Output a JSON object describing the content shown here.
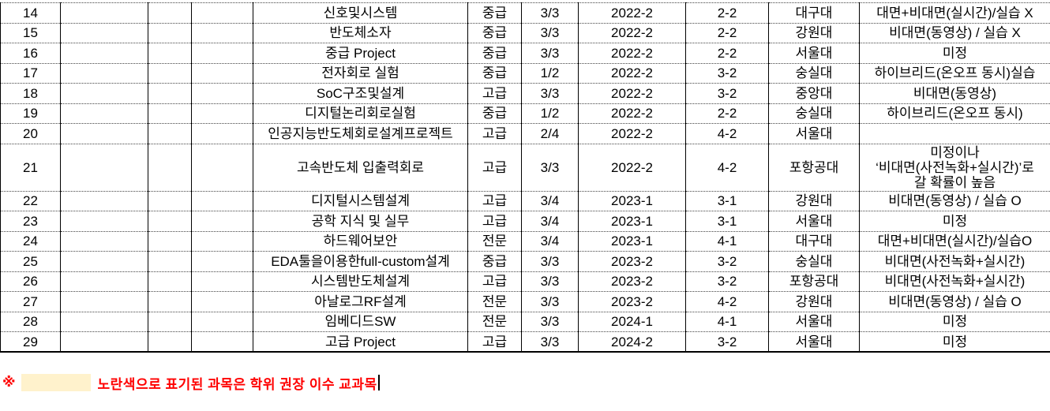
{
  "table": {
    "column_order": [
      "no",
      "b",
      "c",
      "d",
      "course",
      "level",
      "credits",
      "semester",
      "grade_term",
      "university",
      "method"
    ],
    "rows": [
      {
        "no": "14",
        "b": "",
        "c": "",
        "d": "",
        "course": "신호및시스템",
        "level": "중급",
        "credits": "3/3",
        "semester": "2022-2",
        "grade_term": "2-2",
        "university": "대구대",
        "method": "대면+비대면(실시간)/실습 X"
      },
      {
        "no": "15",
        "b": "",
        "c": "",
        "d": "",
        "course": "반도체소자",
        "level": "중급",
        "credits": "3/3",
        "semester": "2022-2",
        "grade_term": "2-2",
        "university": "강원대",
        "method": "비대면(동영상) / 실습 X"
      },
      {
        "no": "16",
        "b": "",
        "c": "",
        "d": "",
        "course": "중급 Project",
        "level": "중급",
        "credits": "3/3",
        "semester": "2022-2",
        "grade_term": "2-2",
        "university": "서울대",
        "method": "미정"
      },
      {
        "no": "17",
        "b": "",
        "c": "",
        "d": "",
        "course": "전자회로 실험",
        "level": "중급",
        "credits": "1/2",
        "semester": "2022-2",
        "grade_term": "3-2",
        "university": "숭실대",
        "method": "하이브리드(온오프 동시)실습"
      },
      {
        "no": "18",
        "b": "",
        "c": "",
        "d": "",
        "course": "SoC구조및설계",
        "level": "고급",
        "credits": "3/3",
        "semester": "2022-2",
        "grade_term": "3-2",
        "university": "중앙대",
        "method": "비대면(동영상)"
      },
      {
        "no": "19",
        "b": "",
        "c": "",
        "d": "",
        "course": "디지털논리회로실험",
        "level": "중급",
        "credits": "1/2",
        "semester": "2022-2",
        "grade_term": "2-2",
        "university": "숭실대",
        "method": "하이브리드(온오프 동시)"
      },
      {
        "no": "20",
        "b": "",
        "c": "",
        "d": "",
        "course": "인공지능반도체회로설계프로젝트",
        "level": "고급",
        "credits": "2/4",
        "semester": "2022-2",
        "grade_term": "4-2",
        "university": "서울대",
        "method": ""
      },
      {
        "no": "21",
        "b": "",
        "c": "",
        "d": "",
        "course": "고속반도체 입출력회로",
        "level": "고급",
        "credits": "3/3",
        "semester": "2022-2",
        "grade_term": "4-2",
        "university": "포항공대",
        "method": "미정이나\n‘비대면(사전녹화+실시간)’로\n갈 확률이 높음"
      },
      {
        "no": "22",
        "b": "",
        "c": "",
        "d": "",
        "course": "디지털시스템설계",
        "level": "고급",
        "credits": "3/4",
        "semester": "2023-1",
        "grade_term": "3-1",
        "university": "강원대",
        "method": "비대면(동영상) / 실습 O"
      },
      {
        "no": "23",
        "b": "",
        "c": "",
        "d": "",
        "course": "공학 지식 및 실무",
        "level": "고급",
        "credits": "3/4",
        "semester": "2023-1",
        "grade_term": "3-1",
        "university": "서울대",
        "method": "미정"
      },
      {
        "no": "24",
        "b": "",
        "c": "",
        "d": "",
        "course": "하드웨어보안",
        "level": "전문",
        "credits": "3/4",
        "semester": "2023-1",
        "grade_term": "4-1",
        "university": "대구대",
        "method": "대면+비대면(실시간)/실습O"
      },
      {
        "no": "25",
        "b": "",
        "c": "",
        "d": "",
        "course": "EDA툴을이용한full-custom설계",
        "level": "중급",
        "credits": "3/3",
        "semester": "2023-2",
        "grade_term": "3-2",
        "university": "숭실대",
        "method": "비대면(사전녹화+실시간)"
      },
      {
        "no": "26",
        "b": "",
        "c": "",
        "d": "",
        "course": "시스템반도체설계",
        "level": "고급",
        "credits": "3/3",
        "semester": "2023-2",
        "grade_term": "3-2",
        "university": "포항공대",
        "method": "비대면(사전녹화+실시간)"
      },
      {
        "no": "27",
        "b": "",
        "c": "",
        "d": "",
        "course": "아날로그RF설계",
        "level": "전문",
        "credits": "3/3",
        "semester": "2023-2",
        "grade_term": "4-2",
        "university": "강원대",
        "method": "비대면(동영상) / 실습 O"
      },
      {
        "no": "28",
        "b": "",
        "c": "",
        "d": "",
        "course": "임베디드SW",
        "level": "전문",
        "credits": "3/3",
        "semester": "2024-1",
        "grade_term": "4-1",
        "university": "서울대",
        "method": "미정"
      },
      {
        "no": "29",
        "b": "",
        "c": "",
        "d": "",
        "course": "고급 Project",
        "level": "고급",
        "credits": "3/3",
        "semester": "2024-2",
        "grade_term": "3-2",
        "university": "서울대",
        "method": "미정"
      }
    ]
  },
  "note": {
    "marker": "※",
    "text": "노란색으로 표기된 과목은 학위 권장 이수 교과목",
    "text_color": "#FF0000",
    "highlight_color": "#FFF2CC"
  }
}
